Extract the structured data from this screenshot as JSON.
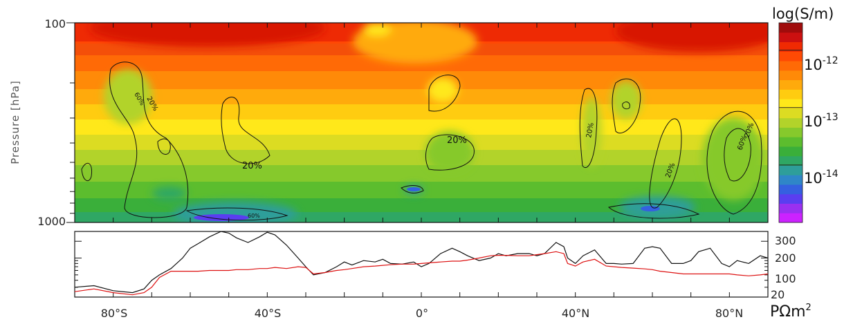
{
  "chart_data": [
    {
      "type": "heatmap",
      "ylabel": "Pressure [hPa]",
      "y_scale": "log",
      "ylim": [
        1000,
        100
      ],
      "y_ticks": [
        "100",
        "1000"
      ],
      "xlim": [
        -90,
        90
      ],
      "colorbar": {
        "title": "log(S/m)",
        "scale": "log",
        "range": [
          1e-15,
          3e-12
        ],
        "ticks": [
          {
            "base": "10",
            "exp": "-12",
            "value": 1e-12
          },
          {
            "base": "10",
            "exp": "-13",
            "value": 1e-13
          },
          {
            "base": "10",
            "exp": "-14",
            "value": 1e-14
          }
        ],
        "colors": [
          "#cc22ff",
          "#9a30f0",
          "#5a3ef0",
          "#3560e0",
          "#2f86c8",
          "#2e9e9a",
          "#2fa764",
          "#3aaf3a",
          "#5cbd2e",
          "#86c92c",
          "#b2d32a",
          "#dcdc22",
          "#ffe81a",
          "#ffcc10",
          "#ffaa0c",
          "#ff8a08",
          "#ff6a06",
          "#ff4a04",
          "#f02a02",
          "#cc1010",
          "#a00c0c"
        ]
      },
      "contour_labels": [
        "60%",
        "20%",
        "20%",
        "20%",
        "60%",
        "20%",
        "20%",
        "60%",
        "20%"
      ]
    },
    {
      "type": "line",
      "x": [
        -90,
        -85,
        -80,
        -75,
        -72,
        -70,
        -68,
        -65,
        -62,
        -60,
        -58,
        -55,
        -52,
        -50,
        -48,
        -45,
        -42,
        -40,
        -38,
        -35,
        -32,
        -30,
        -28,
        -25,
        -22,
        -20,
        -18,
        -15,
        -12,
        -10,
        -8,
        -5,
        -2,
        0,
        2,
        5,
        8,
        10,
        12,
        15,
        18,
        20,
        22,
        25,
        28,
        30,
        32,
        35,
        37,
        38,
        40,
        42,
        45,
        48,
        50,
        52,
        55,
        58,
        60,
        62,
        65,
        68,
        70,
        72,
        75,
        78,
        80,
        82,
        85,
        88,
        90
      ],
      "series": [
        {
          "color": "#111111",
          "values": [
            30,
            32,
            26,
            24,
            28,
            40,
            50,
            65,
            100,
            150,
            180,
            240,
            300,
            280,
            230,
            190,
            240,
            290,
            260,
            170,
            100,
            70,
            50,
            55,
            70,
            85,
            75,
            90,
            85,
            95,
            80,
            78,
            85,
            70,
            80,
            120,
            150,
            130,
            110,
            90,
            100,
            120,
            110,
            120,
            120,
            110,
            120,
            190,
            160,
            100,
            80,
            110,
            140,
            80,
            80,
            78,
            80,
            150,
            160,
            150,
            80,
            80,
            90,
            130,
            150,
            80,
            70,
            90,
            80,
            110,
            100
          ]
        },
        {
          "color": "#dd1111",
          "values": [
            25,
            28,
            24,
            22,
            24,
            30,
            45,
            58,
            58,
            58,
            58,
            60,
            60,
            60,
            62,
            62,
            65,
            65,
            68,
            65,
            70,
            68,
            52,
            55,
            60,
            62,
            65,
            70,
            72,
            74,
            76,
            78,
            78,
            80,
            82,
            85,
            88,
            88,
            92,
            100,
            110,
            112,
            112,
            110,
            110,
            115,
            120,
            130,
            120,
            80,
            72,
            85,
            95,
            72,
            70,
            68,
            66,
            64,
            62,
            58,
            55,
            52,
            52,
            52,
            52,
            52,
            52,
            50,
            48,
            50,
            52
          ]
        }
      ],
      "y_scale": "log",
      "ylim": [
        20,
        300
      ],
      "y_tick_labels": [
        "20",
        "100",
        "200",
        "300"
      ],
      "y_unit": {
        "base": "PΩm",
        "exp": "2"
      },
      "x_tick_labels": [
        "80°S",
        "40°S",
        "0°",
        "40°N",
        "80°N"
      ],
      "x_tick_values": [
        -80,
        -40,
        0,
        40,
        80
      ]
    }
  ]
}
